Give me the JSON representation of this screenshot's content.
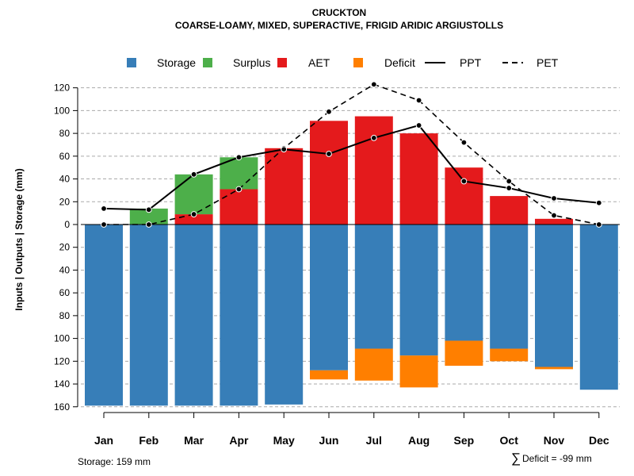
{
  "chart_data": {
    "type": "bar",
    "title": "CRUCKTON",
    "subtitle": "COARSE-LOAMY, MIXED, SUPERACTIVE, FRIGID ARIDIC ARGIUSTOLLS",
    "ylabel": "Inputs | Outputs | Storage    (mm)",
    "ylim": [
      -160,
      130
    ],
    "yticks": [
      120,
      100,
      80,
      60,
      40,
      20,
      0,
      -20,
      -40,
      -60,
      -80,
      -100,
      -120,
      -140,
      -160
    ],
    "ytick_labels": [
      "120",
      "100",
      "80",
      "60",
      "40",
      "20",
      "0",
      "20",
      "40",
      "60",
      "80",
      "100",
      "120",
      "140",
      "160"
    ],
    "grid": true,
    "categories": [
      "Jan",
      "Feb",
      "Mar",
      "Apr",
      "May",
      "Jun",
      "Jul",
      "Aug",
      "Sep",
      "Oct",
      "Nov",
      "Dec"
    ],
    "legend": [
      {
        "label": "Storage",
        "key": "storage",
        "color": "#377EB8",
        "kind": "box"
      },
      {
        "label": "Surplus",
        "key": "surplus",
        "color": "#4DAF4A",
        "kind": "box"
      },
      {
        "label": "AET",
        "key": "aet",
        "color": "#E41A1C",
        "kind": "box"
      },
      {
        "label": "Deficit",
        "key": "deficit",
        "color": "#FF7F00",
        "kind": "box"
      },
      {
        "label": "PPT",
        "key": "ppt",
        "color": "#000000",
        "kind": "solid"
      },
      {
        "label": "PET",
        "key": "pet",
        "color": "#000000",
        "kind": "dashed"
      }
    ],
    "series": {
      "aet": [
        0,
        0,
        9,
        31,
        67,
        91,
        95,
        80,
        50,
        25,
        5,
        0
      ],
      "surplus": [
        0,
        14,
        35,
        28,
        0,
        0,
        0,
        0,
        0,
        0,
        0,
        0
      ],
      "storage": [
        159,
        159,
        159,
        159,
        158,
        128,
        109,
        115,
        102,
        109,
        125,
        145
      ],
      "deficit": [
        0,
        0,
        0,
        0,
        0,
        8,
        28,
        28,
        22,
        11,
        2,
        0
      ],
      "ppt": [
        14,
        13,
        44,
        59,
        66,
        62,
        76,
        87,
        38,
        32,
        23,
        19
      ],
      "pet": [
        0,
        0,
        9,
        31,
        67,
        99,
        123,
        109,
        72,
        38,
        8,
        0
      ]
    },
    "notes": {
      "storage": "Storage: 159 mm",
      "deficit_sum": "Deficit = -99 mm",
      "sigma": "∑"
    }
  }
}
